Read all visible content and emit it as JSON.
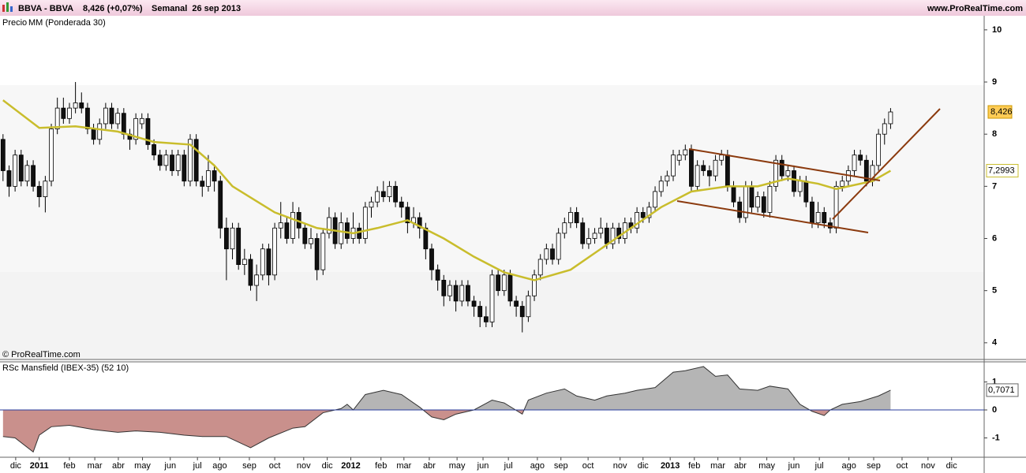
{
  "header": {
    "symbol": "BBVA - BBVA",
    "quote": "8,426 (+0,07%)",
    "period": "Semanal  26 sep 2013",
    "site": "www.ProRealTime.com"
  },
  "chart_data": [
    {
      "type": "candlestick",
      "legend": "Precio",
      "copyright": "© ProRealTime.com",
      "xlim": [
        -0.5,
        162.5
      ],
      "ylim": [
        3.68,
        10.27
      ],
      "yticks": [
        4,
        5,
        6,
        7,
        8,
        9,
        10
      ],
      "last_price": {
        "value": 8.426,
        "label": "8,426"
      },
      "ohlc": [
        [
          7.9,
          8.0,
          7.1,
          7.3
        ],
        [
          7.3,
          7.4,
          6.8,
          7.0
        ],
        [
          7.0,
          7.7,
          6.9,
          7.6
        ],
        [
          7.6,
          7.7,
          7.0,
          7.1
        ],
        [
          7.1,
          7.5,
          7.0,
          7.4
        ],
        [
          7.4,
          7.5,
          6.9,
          7.0
        ],
        [
          7.0,
          7.1,
          6.6,
          6.8
        ],
        [
          6.8,
          7.2,
          6.5,
          7.1
        ],
        [
          7.1,
          8.2,
          7.0,
          8.1
        ],
        [
          8.1,
          8.7,
          8.0,
          8.5
        ],
        [
          8.5,
          8.7,
          8.2,
          8.3
        ],
        [
          8.3,
          8.6,
          8.2,
          8.5
        ],
        [
          8.5,
          9.0,
          8.4,
          8.6
        ],
        [
          8.6,
          8.8,
          8.4,
          8.5
        ],
        [
          8.5,
          8.6,
          8.0,
          8.1
        ],
        [
          8.1,
          8.2,
          7.8,
          7.9
        ],
        [
          7.9,
          8.3,
          7.8,
          8.2
        ],
        [
          8.2,
          8.6,
          8.1,
          8.5
        ],
        [
          8.5,
          8.6,
          8.1,
          8.2
        ],
        [
          8.2,
          8.5,
          8.1,
          8.4
        ],
        [
          8.4,
          8.5,
          7.9,
          8.0
        ],
        [
          8.0,
          8.1,
          7.7,
          7.9
        ],
        [
          7.9,
          8.4,
          7.8,
          8.3
        ],
        [
          8.2,
          8.4,
          8.1,
          8.3
        ],
        [
          8.3,
          8.4,
          7.7,
          7.8
        ],
        [
          7.8,
          7.9,
          7.5,
          7.6
        ],
        [
          7.6,
          7.7,
          7.3,
          7.4
        ],
        [
          7.4,
          7.7,
          7.3,
          7.6
        ],
        [
          7.6,
          7.7,
          7.2,
          7.3
        ],
        [
          7.3,
          7.7,
          7.2,
          7.6
        ],
        [
          7.6,
          7.7,
          7.0,
          7.1
        ],
        [
          7.1,
          8.0,
          7.0,
          7.9
        ],
        [
          7.9,
          8.0,
          7.0,
          7.1
        ],
        [
          7.1,
          7.2,
          6.8,
          7.0
        ],
        [
          7.0,
          7.6,
          6.9,
          7.3
        ],
        [
          7.3,
          7.4,
          6.9,
          7.1
        ],
        [
          7.1,
          7.2,
          6.0,
          6.2
        ],
        [
          6.2,
          6.4,
          5.2,
          5.8
        ],
        [
          5.8,
          6.3,
          5.6,
          6.2
        ],
        [
          6.2,
          6.3,
          5.4,
          5.5
        ],
        [
          5.5,
          5.8,
          5.3,
          5.6
        ],
        [
          5.6,
          5.7,
          5.0,
          5.1
        ],
        [
          5.1,
          5.5,
          4.8,
          5.3
        ],
        [
          5.3,
          5.9,
          5.2,
          5.8
        ],
        [
          5.8,
          5.9,
          5.1,
          5.3
        ],
        [
          5.3,
          6.3,
          5.2,
          6.2
        ],
        [
          6.2,
          6.7,
          6.0,
          6.3
        ],
        [
          6.3,
          6.4,
          5.9,
          6.0
        ],
        [
          6.0,
          6.7,
          5.9,
          6.5
        ],
        [
          6.5,
          6.6,
          6.0,
          6.2
        ],
        [
          6.2,
          6.3,
          5.8,
          5.9
        ],
        [
          5.9,
          6.2,
          5.8,
          6.0
        ],
        [
          6.0,
          6.1,
          5.2,
          5.4
        ],
        [
          5.4,
          6.2,
          5.3,
          6.1
        ],
        [
          6.1,
          6.6,
          6.0,
          6.4
        ],
        [
          6.4,
          6.5,
          5.8,
          5.9
        ],
        [
          5.9,
          6.5,
          5.8,
          6.3
        ],
        [
          6.3,
          6.4,
          5.9,
          6.0
        ],
        [
          6.0,
          6.5,
          5.9,
          6.2
        ],
        [
          6.2,
          6.3,
          5.9,
          6.0
        ],
        [
          6.0,
          6.7,
          5.9,
          6.6
        ],
        [
          6.6,
          6.8,
          6.4,
          6.7
        ],
        [
          6.7,
          7.0,
          6.6,
          6.9
        ],
        [
          6.9,
          7.1,
          6.7,
          6.8
        ],
        [
          6.8,
          7.1,
          6.7,
          7.0
        ],
        [
          7.0,
          7.1,
          6.6,
          6.7
        ],
        [
          6.7,
          6.8,
          6.4,
          6.6
        ],
        [
          6.6,
          6.7,
          6.1,
          6.3
        ],
        [
          6.3,
          6.6,
          6.2,
          6.4
        ],
        [
          6.4,
          6.5,
          6.0,
          6.2
        ],
        [
          6.2,
          6.3,
          5.6,
          5.8
        ],
        [
          5.8,
          5.9,
          5.2,
          5.4
        ],
        [
          5.4,
          5.5,
          5.0,
          5.2
        ],
        [
          5.2,
          5.3,
          4.7,
          4.9
        ],
        [
          4.9,
          5.2,
          4.8,
          5.1
        ],
        [
          5.1,
          5.2,
          4.6,
          4.8
        ],
        [
          4.8,
          5.2,
          4.7,
          5.1
        ],
        [
          5.1,
          5.2,
          4.7,
          4.8
        ],
        [
          4.8,
          4.9,
          4.5,
          4.7
        ],
        [
          4.7,
          4.8,
          4.3,
          4.5
        ],
        [
          4.5,
          4.7,
          4.3,
          4.4
        ],
        [
          4.4,
          5.4,
          4.3,
          5.3
        ],
        [
          5.3,
          5.4,
          4.9,
          5.0
        ],
        [
          5.0,
          5.4,
          4.9,
          5.3
        ],
        [
          5.3,
          5.4,
          4.7,
          4.8
        ],
        [
          4.8,
          4.9,
          4.5,
          4.7
        ],
        [
          4.7,
          4.8,
          4.2,
          4.5
        ],
        [
          4.5,
          5.0,
          4.4,
          4.9
        ],
        [
          4.9,
          5.4,
          4.8,
          5.3
        ],
        [
          5.3,
          5.7,
          5.2,
          5.6
        ],
        [
          5.6,
          5.9,
          5.5,
          5.8
        ],
        [
          5.8,
          5.9,
          5.5,
          5.6
        ],
        [
          5.6,
          6.2,
          5.5,
          6.1
        ],
        [
          6.1,
          6.4,
          6.0,
          6.3
        ],
        [
          6.3,
          6.6,
          6.2,
          6.5
        ],
        [
          6.5,
          6.6,
          6.2,
          6.3
        ],
        [
          6.3,
          6.4,
          5.8,
          5.9
        ],
        [
          5.9,
          6.2,
          5.8,
          6.0
        ],
        [
          6.0,
          6.2,
          5.9,
          6.1
        ],
        [
          6.1,
          6.4,
          6.0,
          6.2
        ],
        [
          6.2,
          6.3,
          5.8,
          5.9
        ],
        [
          5.9,
          6.3,
          5.8,
          6.2
        ],
        [
          6.2,
          6.3,
          5.9,
          6.0
        ],
        [
          6.0,
          6.4,
          5.9,
          6.3
        ],
        [
          6.3,
          6.4,
          6.1,
          6.2
        ],
        [
          6.2,
          6.6,
          6.1,
          6.5
        ],
        [
          6.5,
          6.6,
          6.3,
          6.4
        ],
        [
          6.4,
          6.7,
          6.3,
          6.6
        ],
        [
          6.6,
          7.0,
          6.5,
          6.9
        ],
        [
          6.9,
          7.2,
          6.8,
          7.1
        ],
        [
          7.1,
          7.3,
          7.0,
          7.2
        ],
        [
          7.2,
          7.7,
          7.1,
          7.6
        ],
        [
          7.5,
          7.7,
          7.4,
          7.6
        ],
        [
          7.6,
          7.8,
          7.5,
          7.7
        ],
        [
          7.7,
          7.8,
          6.9,
          7.0
        ],
        [
          7.0,
          7.5,
          6.9,
          7.4
        ],
        [
          7.4,
          7.5,
          7.2,
          7.3
        ],
        [
          7.3,
          7.4,
          7.0,
          7.2
        ],
        [
          7.2,
          7.6,
          7.1,
          7.5
        ],
        [
          7.5,
          7.7,
          7.4,
          7.6
        ],
        [
          7.6,
          7.7,
          6.9,
          7.0
        ],
        [
          7.0,
          7.1,
          6.6,
          6.7
        ],
        [
          6.7,
          6.8,
          6.3,
          6.4
        ],
        [
          6.4,
          7.1,
          6.3,
          7.0
        ],
        [
          7.0,
          7.1,
          6.5,
          6.6
        ],
        [
          6.6,
          6.9,
          6.5,
          6.8
        ],
        [
          6.8,
          6.9,
          6.4,
          6.5
        ],
        [
          6.5,
          7.1,
          6.4,
          7.0
        ],
        [
          7.0,
          7.6,
          6.9,
          7.5
        ],
        [
          7.5,
          7.6,
          7.1,
          7.2
        ],
        [
          7.2,
          7.4,
          7.1,
          7.3
        ],
        [
          7.3,
          7.4,
          6.8,
          6.9
        ],
        [
          6.9,
          7.2,
          6.8,
          7.1
        ],
        [
          7.1,
          7.2,
          6.6,
          6.7
        ],
        [
          6.7,
          6.8,
          6.2,
          6.3
        ],
        [
          6.3,
          6.7,
          6.2,
          6.5
        ],
        [
          6.5,
          6.6,
          6.2,
          6.3
        ],
        [
          6.3,
          6.4,
          6.1,
          6.2
        ],
        [
          6.2,
          7.1,
          6.1,
          7.0
        ],
        [
          7.0,
          7.2,
          6.9,
          7.1
        ],
        [
          7.1,
          7.4,
          7.0,
          7.3
        ],
        [
          7.3,
          7.7,
          7.2,
          7.6
        ],
        [
          7.6,
          7.7,
          7.4,
          7.5
        ],
        [
          7.5,
          7.6,
          7.0,
          7.1
        ],
        [
          7.1,
          7.5,
          7.0,
          7.4
        ],
        [
          7.4,
          8.1,
          7.3,
          8.0
        ],
        [
          8.0,
          8.3,
          7.8,
          8.2
        ],
        [
          8.2,
          8.5,
          8.1,
          8.426
        ]
      ],
      "moving_average": {
        "name": "MM (Ponderada 30)",
        "color": "#c9bd2c",
        "x": [
          0,
          6,
          12,
          19,
          25,
          31,
          35,
          38,
          45,
          52,
          58,
          62,
          67,
          73,
          78,
          83,
          88,
          94,
          99,
          104,
          109,
          114,
          120,
          125,
          130,
          135,
          138,
          140,
          144,
          147
        ],
        "values": [
          8.65,
          8.12,
          8.15,
          8.05,
          7.85,
          7.8,
          7.4,
          7.0,
          6.5,
          6.2,
          6.1,
          6.2,
          6.35,
          6.0,
          5.65,
          5.35,
          5.2,
          5.4,
          5.8,
          6.2,
          6.6,
          6.9,
          7.0,
          7.0,
          7.15,
          7.05,
          6.95,
          7.0,
          7.1,
          7.2993
        ],
        "last": {
          "value": 7.2993,
          "label": "7,2993"
        }
      }
    },
    {
      "type": "area",
      "title": "RSc Mansfield (IBEX-35) (52 10)",
      "positive_color": "#b5b5b5",
      "negative_color": "#c9908c",
      "xlim": [
        -0.5,
        162.5
      ],
      "ylim": [
        -1.69,
        1.69
      ],
      "yticks": [
        -1,
        0,
        1
      ],
      "last": {
        "value": 0.7071,
        "label": "0,7071"
      },
      "x": [
        0,
        2,
        5,
        6,
        8,
        11,
        15,
        19,
        22,
        26,
        30,
        33,
        37,
        41,
        44,
        48,
        50,
        53,
        56,
        57,
        58,
        60,
        63,
        66,
        69,
        71,
        73,
        75,
        78,
        81,
        83,
        86,
        87,
        90,
        93,
        95,
        98,
        100,
        103,
        105,
        108,
        111,
        113,
        116,
        118,
        120,
        122,
        125,
        127,
        130,
        132,
        134,
        136,
        137,
        139,
        142,
        145,
        147
      ],
      "values": [
        -0.95,
        -1.0,
        -1.5,
        -0.9,
        -0.6,
        -0.55,
        -0.7,
        -0.8,
        -0.75,
        -0.8,
        -0.9,
        -0.95,
        -0.95,
        -1.35,
        -1.0,
        -0.65,
        -0.6,
        -0.1,
        0.05,
        0.2,
        0.0,
        0.55,
        0.7,
        0.55,
        0.1,
        -0.25,
        -0.35,
        -0.15,
        0.0,
        0.35,
        0.25,
        -0.15,
        0.35,
        0.6,
        0.75,
        0.5,
        0.35,
        0.5,
        0.6,
        0.7,
        0.8,
        1.35,
        1.4,
        1.55,
        1.2,
        1.25,
        0.75,
        0.7,
        0.85,
        0.75,
        0.2,
        -0.05,
        -0.2,
        0.0,
        0.2,
        0.3,
        0.5,
        0.7071
      ],
      "xticks": [
        {
          "value": 2.1,
          "label": "dic"
        },
        {
          "value": 6,
          "label": "2011"
        },
        {
          "value": 11,
          "label": "feb"
        },
        {
          "value": 15.2,
          "label": "mar"
        },
        {
          "value": 19.1,
          "label": "abr"
        },
        {
          "value": 23.1,
          "label": "may"
        },
        {
          "value": 27.7,
          "label": "jun"
        },
        {
          "value": 32.2,
          "label": "jul"
        },
        {
          "value": 35.9,
          "label": "ago"
        },
        {
          "value": 40.8,
          "label": "sep"
        },
        {
          "value": 45,
          "label": "oct"
        },
        {
          "value": 49.8,
          "label": "nov"
        },
        {
          "value": 53.7,
          "label": "dic"
        },
        {
          "value": 57.6,
          "label": "2012"
        },
        {
          "value": 62.6,
          "label": "feb"
        },
        {
          "value": 66.4,
          "label": "mar"
        },
        {
          "value": 70.6,
          "label": "abr"
        },
        {
          "value": 75.2,
          "label": "may"
        },
        {
          "value": 79.5,
          "label": "jun"
        },
        {
          "value": 83.7,
          "label": "jul"
        },
        {
          "value": 88.5,
          "label": "ago"
        },
        {
          "value": 92.4,
          "label": "sep"
        },
        {
          "value": 96.9,
          "label": "oct"
        },
        {
          "value": 102.2,
          "label": "nov"
        },
        {
          "value": 106,
          "label": "dic"
        },
        {
          "value": 110.5,
          "label": "2013"
        },
        {
          "value": 114.5,
          "label": "feb"
        },
        {
          "value": 118.4,
          "label": "mar"
        },
        {
          "value": 122.1,
          "label": "abr"
        },
        {
          "value": 126.5,
          "label": "may"
        },
        {
          "value": 131,
          "label": "jun"
        },
        {
          "value": 135.2,
          "label": "jul"
        },
        {
          "value": 140.1,
          "label": "ago"
        },
        {
          "value": 144.2,
          "label": "sep"
        },
        {
          "value": 148.9,
          "label": "oct"
        },
        {
          "value": 153.2,
          "label": "nov"
        },
        {
          "value": 157.1,
          "label": "dic"
        }
      ]
    }
  ]
}
